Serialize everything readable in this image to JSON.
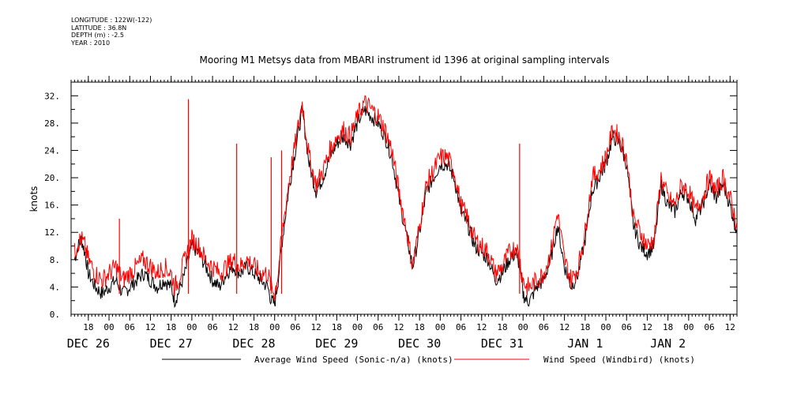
{
  "header": {
    "longitude": "LONGITUDE : 122W(-122)",
    "latitude": "LATITUDE : 36.8N",
    "depth": "DEPTH (m) : -2.5",
    "year": "YEAR : 2010"
  },
  "chart_data": {
    "type": "line",
    "title": "Mooring M1 Metsys data from MBARI instrument id 1396 at original sampling intervals",
    "ylabel": "knots",
    "xlabel": "",
    "ylim": [
      0,
      34
    ],
    "yticks": [
      "0.",
      "4.",
      "8.",
      "12.",
      "16.",
      "20.",
      "24.",
      "28.",
      "32."
    ],
    "x_unit": "hours since DEC 26 00:00",
    "xlim": [
      13,
      206
    ],
    "hour_ticks": [
      {
        "h": 18,
        "label": "18"
      },
      {
        "h": 24,
        "label": "00"
      },
      {
        "h": 30,
        "label": "06"
      },
      {
        "h": 36,
        "label": "12"
      },
      {
        "h": 42,
        "label": "18"
      },
      {
        "h": 48,
        "label": "00"
      },
      {
        "h": 54,
        "label": "06"
      },
      {
        "h": 60,
        "label": "12"
      },
      {
        "h": 66,
        "label": "18"
      },
      {
        "h": 72,
        "label": "00"
      },
      {
        "h": 78,
        "label": "06"
      },
      {
        "h": 84,
        "label": "12"
      },
      {
        "h": 90,
        "label": "18"
      },
      {
        "h": 96,
        "label": "00"
      },
      {
        "h": 102,
        "label": "06"
      },
      {
        "h": 108,
        "label": "12"
      },
      {
        "h": 114,
        "label": "18"
      },
      {
        "h": 120,
        "label": "00"
      },
      {
        "h": 126,
        "label": "06"
      },
      {
        "h": 132,
        "label": "12"
      },
      {
        "h": 138,
        "label": "18"
      },
      {
        "h": 144,
        "label": "00"
      },
      {
        "h": 150,
        "label": "06"
      },
      {
        "h": 156,
        "label": "12"
      },
      {
        "h": 162,
        "label": "18"
      },
      {
        "h": 168,
        "label": "00"
      },
      {
        "h": 174,
        "label": "06"
      },
      {
        "h": 180,
        "label": "12"
      },
      {
        "h": 186,
        "label": "18"
      },
      {
        "h": 192,
        "label": "00"
      },
      {
        "h": 198,
        "label": "06"
      },
      {
        "h": 204,
        "label": "12"
      }
    ],
    "date_labels": [
      {
        "h": 18,
        "label": "DEC 26"
      },
      {
        "h": 42,
        "label": "DEC 27"
      },
      {
        "h": 66,
        "label": "DEC 28"
      },
      {
        "h": 90,
        "label": "DEC 29"
      },
      {
        "h": 114,
        "label": "DEC 30"
      },
      {
        "h": 138,
        "label": "DEC 31"
      },
      {
        "h": 162,
        "label": "JAN  1"
      },
      {
        "h": 186,
        "label": "JAN  2"
      }
    ],
    "series": [
      {
        "name": "Average Wind Speed (Sonic-n/a) (knots)",
        "color": "#000000",
        "x": [
          14,
          15,
          16,
          17,
          18,
          20,
          22,
          24,
          26,
          28,
          30,
          32,
          34,
          36,
          38,
          40,
          42,
          43,
          44,
          46,
          48,
          50,
          52,
          54,
          56,
          58,
          60,
          62,
          64,
          66,
          68,
          70,
          71,
          72,
          73,
          74,
          76,
          78,
          80,
          82,
          84,
          86,
          88,
          90,
          92,
          94,
          96,
          98,
          100,
          102,
          104,
          106,
          108,
          110,
          112,
          114,
          116,
          118,
          120,
          122,
          124,
          126,
          128,
          130,
          132,
          134,
          136,
          138,
          140,
          142,
          143,
          144,
          145,
          146,
          148,
          150,
          152,
          154,
          156,
          158,
          160,
          162,
          164,
          166,
          168,
          170,
          172,
          174,
          176,
          178,
          180,
          182,
          184,
          186,
          188,
          190,
          192,
          194,
          196,
          198,
          200,
          202,
          204,
          205,
          206
        ],
        "y": [
          8,
          10,
          11,
          9,
          6,
          4,
          3,
          4,
          5,
          3,
          4,
          5,
          6,
          5,
          4,
          5,
          4,
          2,
          3,
          6,
          10,
          9,
          7,
          5,
          4,
          6,
          7,
          6,
          7,
          6,
          5,
          4,
          2,
          1.5,
          5,
          10,
          18,
          24,
          30,
          22,
          18,
          20,
          23,
          25,
          26,
          25,
          28,
          30,
          29,
          28,
          26,
          23,
          17,
          12,
          7,
          12,
          18,
          20,
          22,
          22,
          20,
          15,
          13,
          10,
          9,
          8,
          5,
          6,
          8,
          9,
          7,
          3,
          2,
          2,
          4,
          5,
          8,
          13,
          7,
          4,
          6,
          11,
          18,
          20,
          22,
          26,
          25,
          22,
          13,
          10,
          9,
          10,
          19,
          16,
          15,
          18,
          17,
          14,
          16,
          19,
          17,
          19,
          16,
          14,
          12
        ]
      },
      {
        "name": "Wind Speed (Windbird) (knots)",
        "color": "#ff0000",
        "x": [
          14,
          15,
          16,
          17,
          18,
          20,
          22,
          24,
          26,
          28,
          30,
          32,
          34,
          36,
          38,
          40,
          42,
          43,
          44,
          46,
          48,
          50,
          52,
          54,
          56,
          58,
          60,
          62,
          64,
          66,
          68,
          70,
          71,
          72,
          73,
          74,
          76,
          78,
          80,
          82,
          84,
          86,
          88,
          90,
          92,
          94,
          96,
          98,
          100,
          102,
          104,
          106,
          108,
          110,
          112,
          114,
          116,
          118,
          120,
          122,
          124,
          126,
          128,
          130,
          132,
          134,
          136,
          138,
          140,
          142,
          143,
          144,
          145,
          146,
          148,
          150,
          152,
          154,
          156,
          158,
          160,
          162,
          164,
          166,
          168,
          170,
          172,
          174,
          176,
          178,
          180,
          182,
          184,
          186,
          188,
          190,
          192,
          194,
          196,
          198,
          200,
          202,
          204,
          205,
          206
        ],
        "y": [
          9,
          10.5,
          11,
          10,
          8,
          6,
          5,
          6,
          7,
          5,
          6,
          7,
          8,
          7,
          6,
          7,
          6,
          4,
          5,
          8,
          11,
          10,
          8,
          7,
          6,
          7,
          8,
          7,
          8,
          7,
          6,
          6,
          4,
          3,
          6,
          11,
          19,
          25,
          31,
          23,
          19,
          21,
          24,
          26,
          27,
          26,
          29,
          31,
          30,
          29,
          27,
          24,
          18,
          13,
          7,
          13,
          19,
          21,
          23,
          23,
          21,
          16,
          14,
          11,
          10,
          9,
          6,
          7,
          9,
          10,
          8,
          5,
          4,
          4,
          5,
          6,
          9,
          15,
          8,
          5,
          7,
          12,
          20,
          21,
          23,
          27,
          26,
          23,
          14,
          12,
          10,
          11,
          20,
          17,
          16,
          19,
          18,
          15,
          17,
          20,
          18,
          20,
          17,
          15,
          13
        ]
      }
    ],
    "spikes": [
      {
        "x": 27,
        "y": 14
      },
      {
        "x": 47,
        "y": 31.5
      },
      {
        "x": 61,
        "y": 25
      },
      {
        "x": 71,
        "y": 23
      },
      {
        "x": 74,
        "y": 24
      },
      {
        "x": 143,
        "y": 25
      }
    ],
    "legend_position": "bottom"
  }
}
